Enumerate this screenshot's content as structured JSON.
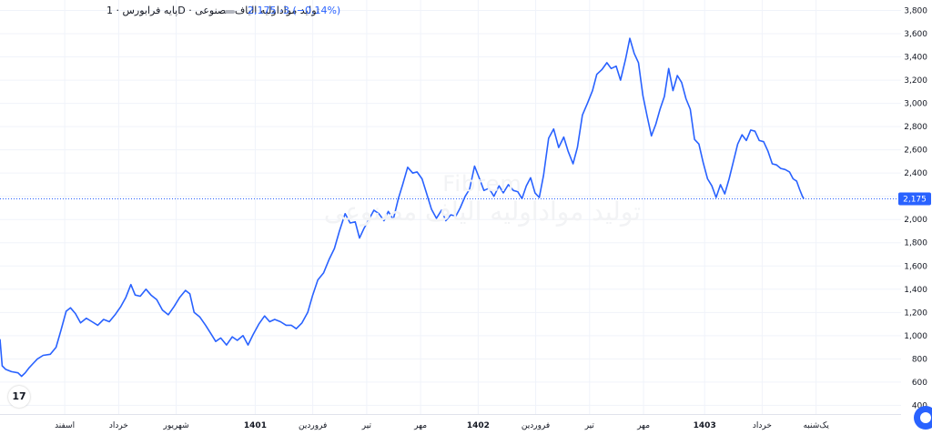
{
  "legend": {
    "title": "پایه فرابورس · 1D · تولید مواداولیه الیاف مصنوعی",
    "price_line": "2,175  -3 (−0.14%)"
  },
  "watermark": {
    "symbol": "Fibrem",
    "name": "تولید مواداولیه الیاف مصنوعی"
  },
  "logo_text": "17",
  "colors": {
    "line": "#2962ff",
    "grid": "#f0f3fa",
    "axis_text": "#131722",
    "last_label_bg": "#2962ff"
  },
  "chart_data": {
    "type": "line",
    "title": "",
    "last_price_label": "2,175",
    "y_ticks": [
      {
        "v": 400,
        "label": "400"
      },
      {
        "v": 600,
        "label": "600"
      },
      {
        "v": 800,
        "label": "800"
      },
      {
        "v": 1000,
        "label": "1,000"
      },
      {
        "v": 1200,
        "label": "1,200"
      },
      {
        "v": 1400,
        "label": "1,400"
      },
      {
        "v": 1600,
        "label": "1,600"
      },
      {
        "v": 1800,
        "label": "1,800"
      },
      {
        "v": 2000,
        "label": "2,000"
      },
      {
        "v": 2200,
        "label": "2,200"
      },
      {
        "v": 2400,
        "label": "2,400"
      },
      {
        "v": 2600,
        "label": "2,600"
      },
      {
        "v": 2800,
        "label": "2,800"
      },
      {
        "v": 3000,
        "label": "3,000"
      },
      {
        "v": 3200,
        "label": "3,200"
      },
      {
        "v": 3400,
        "label": "3,400"
      },
      {
        "v": 3600,
        "label": "3,600"
      },
      {
        "v": 3800,
        "label": "3,800"
      }
    ],
    "ylim": [
      325,
      3890
    ],
    "x_range": [
      0,
      120
    ],
    "x_ticks": [
      {
        "t": 9,
        "label": "اسفند",
        "bold": false
      },
      {
        "t": 16.5,
        "label": "خرداد",
        "bold": false
      },
      {
        "t": 24.5,
        "label": "شهریور",
        "bold": false
      },
      {
        "t": 35.5,
        "label": "1401",
        "bold": true
      },
      {
        "t": 43.5,
        "label": "فروردین",
        "bold": false
      },
      {
        "t": 51,
        "label": "تیر",
        "bold": false
      },
      {
        "t": 58.5,
        "label": "مهر",
        "bold": false
      },
      {
        "t": 66.5,
        "label": "1402",
        "bold": true
      },
      {
        "t": 74.5,
        "label": "فروردین",
        "bold": false
      },
      {
        "t": 82,
        "label": "تیر",
        "bold": false
      },
      {
        "t": 89.5,
        "label": "مهر",
        "bold": false
      },
      {
        "t": 98,
        "label": "1403",
        "bold": true
      },
      {
        "t": 106,
        "label": "خرداد",
        "bold": false
      },
      {
        "t": 113.5,
        "label": "یک‌شنبه",
        "bold": false
      }
    ],
    "series": [
      {
        "values": [
          [
            0,
            970
          ],
          [
            0.3,
            740
          ],
          [
            0.8,
            710
          ],
          [
            1.6,
            690
          ],
          [
            2.5,
            680
          ],
          [
            3,
            650
          ],
          [
            3.5,
            680
          ],
          [
            4,
            720
          ],
          [
            4.6,
            760
          ],
          [
            5.2,
            800
          ],
          [
            6,
            830
          ],
          [
            7,
            840
          ],
          [
            7.8,
            900
          ],
          [
            8.5,
            1050
          ],
          [
            9.2,
            1210
          ],
          [
            9.8,
            1240
          ],
          [
            10.5,
            1190
          ],
          [
            11.2,
            1110
          ],
          [
            12,
            1150
          ],
          [
            12.8,
            1120
          ],
          [
            13.6,
            1090
          ],
          [
            14.4,
            1140
          ],
          [
            15.2,
            1120
          ],
          [
            16,
            1180
          ],
          [
            16.8,
            1250
          ],
          [
            17.5,
            1330
          ],
          [
            18.2,
            1440
          ],
          [
            18.8,
            1350
          ],
          [
            19.5,
            1340
          ],
          [
            20.3,
            1400
          ],
          [
            21,
            1350
          ],
          [
            21.8,
            1310
          ],
          [
            22.6,
            1220
          ],
          [
            23.4,
            1180
          ],
          [
            24.2,
            1250
          ],
          [
            25,
            1330
          ],
          [
            25.8,
            1390
          ],
          [
            26.4,
            1360
          ],
          [
            27,
            1200
          ],
          [
            27.8,
            1160
          ],
          [
            28.6,
            1090
          ],
          [
            29.4,
            1010
          ],
          [
            30,
            950
          ],
          [
            30.7,
            980
          ],
          [
            31.5,
            920
          ],
          [
            32.3,
            990
          ],
          [
            33,
            960
          ],
          [
            33.8,
            1000
          ],
          [
            34.5,
            920
          ],
          [
            35.2,
            1010
          ],
          [
            36,
            1100
          ],
          [
            36.8,
            1170
          ],
          [
            37.5,
            1120
          ],
          [
            38.2,
            1140
          ],
          [
            39,
            1120
          ],
          [
            39.8,
            1090
          ],
          [
            40.5,
            1090
          ],
          [
            41.2,
            1060
          ],
          [
            42,
            1110
          ],
          [
            42.8,
            1200
          ],
          [
            43.5,
            1350
          ],
          [
            44.2,
            1480
          ],
          [
            45,
            1540
          ],
          [
            45.8,
            1660
          ],
          [
            46.5,
            1750
          ],
          [
            47.2,
            1900
          ],
          [
            48,
            2050
          ],
          [
            48.7,
            1970
          ],
          [
            49.4,
            1980
          ],
          [
            50,
            1840
          ],
          [
            50.6,
            1920
          ],
          [
            51.3,
            2000
          ],
          [
            52,
            2080
          ],
          [
            52.7,
            2050
          ],
          [
            53.4,
            1990
          ],
          [
            54,
            2070
          ],
          [
            54.7,
            2000
          ],
          [
            55.4,
            2180
          ],
          [
            56,
            2300
          ],
          [
            56.7,
            2450
          ],
          [
            57.4,
            2400
          ],
          [
            58,
            2410
          ],
          [
            58.7,
            2350
          ],
          [
            59.3,
            2230
          ],
          [
            60,
            2090
          ],
          [
            60.7,
            2010
          ],
          [
            61.4,
            2080
          ],
          [
            62,
            1990
          ],
          [
            62.7,
            2040
          ],
          [
            63.4,
            2030
          ],
          [
            64,
            2100
          ],
          [
            64.7,
            2200
          ],
          [
            65.3,
            2260
          ],
          [
            66,
            2460
          ],
          [
            66.7,
            2350
          ],
          [
            67.3,
            2250
          ],
          [
            68,
            2270
          ],
          [
            68.7,
            2200
          ],
          [
            69.4,
            2290
          ],
          [
            70,
            2230
          ],
          [
            70.7,
            2300
          ],
          [
            71.4,
            2250
          ],
          [
            72,
            2240
          ],
          [
            72.6,
            2180
          ],
          [
            73.2,
            2290
          ],
          [
            73.8,
            2360
          ],
          [
            74.4,
            2230
          ],
          [
            75,
            2190
          ],
          [
            75.6,
            2380
          ],
          [
            76.3,
            2700
          ],
          [
            77,
            2780
          ],
          [
            77.7,
            2620
          ],
          [
            78.4,
            2710
          ],
          [
            79,
            2590
          ],
          [
            79.7,
            2480
          ],
          [
            80.3,
            2620
          ],
          [
            81,
            2900
          ],
          [
            81.7,
            3000
          ],
          [
            82.4,
            3110
          ],
          [
            83,
            3250
          ],
          [
            83.7,
            3290
          ],
          [
            84.4,
            3350
          ],
          [
            85,
            3300
          ],
          [
            85.7,
            3320
          ],
          [
            86.3,
            3200
          ],
          [
            87,
            3380
          ],
          [
            87.6,
            3560
          ],
          [
            88.2,
            3430
          ],
          [
            88.8,
            3350
          ],
          [
            89.4,
            3070
          ],
          [
            90,
            2890
          ],
          [
            90.6,
            2720
          ],
          [
            91.2,
            2820
          ],
          [
            91.8,
            2950
          ],
          [
            92.4,
            3060
          ],
          [
            93,
            3300
          ],
          [
            93.6,
            3110
          ],
          [
            94.2,
            3240
          ],
          [
            94.8,
            3180
          ],
          [
            95.4,
            3040
          ],
          [
            96,
            2950
          ],
          [
            96.6,
            2690
          ],
          [
            97.2,
            2650
          ],
          [
            97.8,
            2490
          ],
          [
            98.4,
            2350
          ],
          [
            99,
            2290
          ],
          [
            99.6,
            2190
          ],
          [
            100.2,
            2300
          ],
          [
            100.8,
            2220
          ],
          [
            101.4,
            2350
          ],
          [
            102,
            2500
          ],
          [
            102.6,
            2650
          ],
          [
            103.2,
            2730
          ],
          [
            103.8,
            2680
          ],
          [
            104.4,
            2770
          ],
          [
            105,
            2760
          ],
          [
            105.6,
            2680
          ],
          [
            106.2,
            2670
          ],
          [
            106.8,
            2590
          ],
          [
            107.4,
            2480
          ],
          [
            108,
            2470
          ],
          [
            108.6,
            2440
          ],
          [
            109.2,
            2430
          ],
          [
            109.8,
            2410
          ],
          [
            110.3,
            2350
          ],
          [
            110.8,
            2330
          ],
          [
            111.2,
            2260
          ],
          [
            111.6,
            2200
          ],
          [
            111.8,
            2178
          ]
        ]
      }
    ],
    "grid": true
  }
}
